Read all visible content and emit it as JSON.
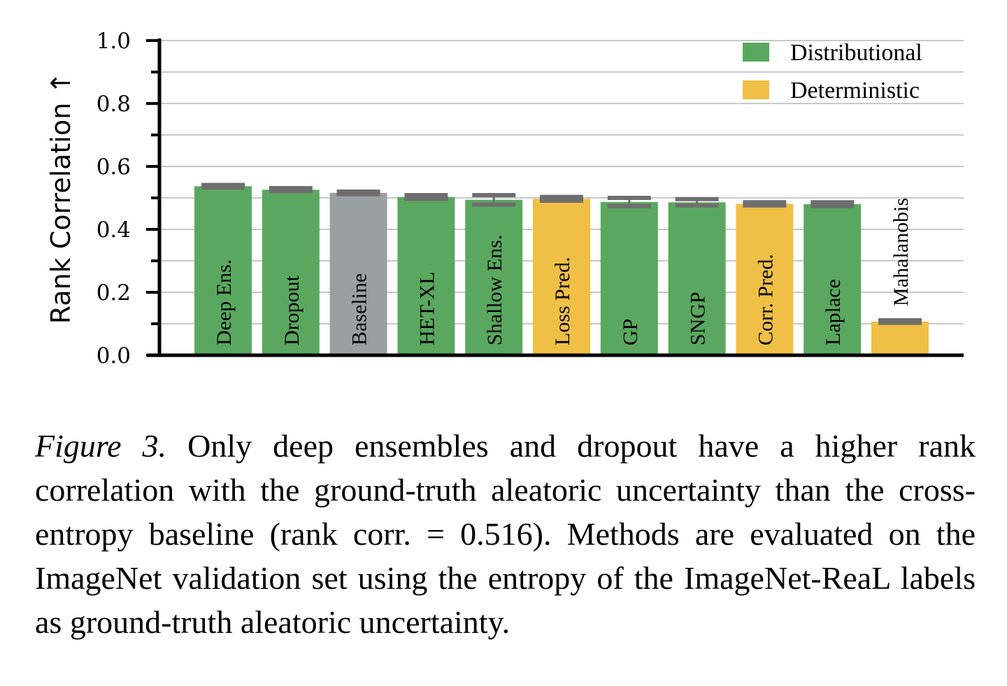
{
  "chart_data": {
    "type": "bar",
    "title": "",
    "xlabel": "",
    "ylabel": "Rank Correlation ↑",
    "ylim": [
      0.0,
      1.0
    ],
    "yticks": [
      "0.0",
      "0.2",
      "0.4",
      "0.6",
      "0.8",
      "1.0"
    ],
    "grid": true,
    "legend_position": "top-right",
    "legend": [
      {
        "name": "Distributional",
        "color": "#5aa85f"
      },
      {
        "name": "Deterministic",
        "color": "#f0bf45"
      }
    ],
    "baseline_color": "#9a9fa2",
    "error_bar_color": "#6e6e6e",
    "bars": [
      {
        "label": "Deep Ens.",
        "value": 0.537,
        "error": 0.004,
        "group": "distributional"
      },
      {
        "label": "Dropout",
        "value": 0.526,
        "error": 0.005,
        "group": "distributional"
      },
      {
        "label": "Baseline",
        "value": 0.516,
        "error": 0.004,
        "group": "baseline"
      },
      {
        "label": "HET-XL",
        "value": 0.503,
        "error": 0.006,
        "group": "distributional"
      },
      {
        "label": "Shallow Ens.",
        "value": 0.494,
        "error": 0.015,
        "group": "distributional"
      },
      {
        "label": "Loss Pred.",
        "value": 0.497,
        "error": 0.006,
        "group": "deterministic"
      },
      {
        "label": "GP",
        "value": 0.487,
        "error": 0.013,
        "group": "distributional"
      },
      {
        "label": "SNGP",
        "value": 0.486,
        "error": 0.01,
        "group": "distributional"
      },
      {
        "label": "Corr. Pred.",
        "value": 0.481,
        "error": 0.005,
        "group": "deterministic"
      },
      {
        "label": "Laplace",
        "value": 0.48,
        "error": 0.006,
        "group": "distributional"
      },
      {
        "label": "Mahalanobis",
        "value": 0.107,
        "error": 0.004,
        "group": "deterministic"
      }
    ]
  },
  "caption": {
    "figure_label": "Figure 3.",
    "text": " Only deep ensembles and dropout have a higher rank correlation with the ground-truth aleatoric uncertainty than the cross-entropy baseline (rank corr. = 0.516). Methods are eval­uated on the ImageNet validation set using the entropy of the ImageNet-ReaL labels as ground-truth aleatoric uncertainty."
  }
}
